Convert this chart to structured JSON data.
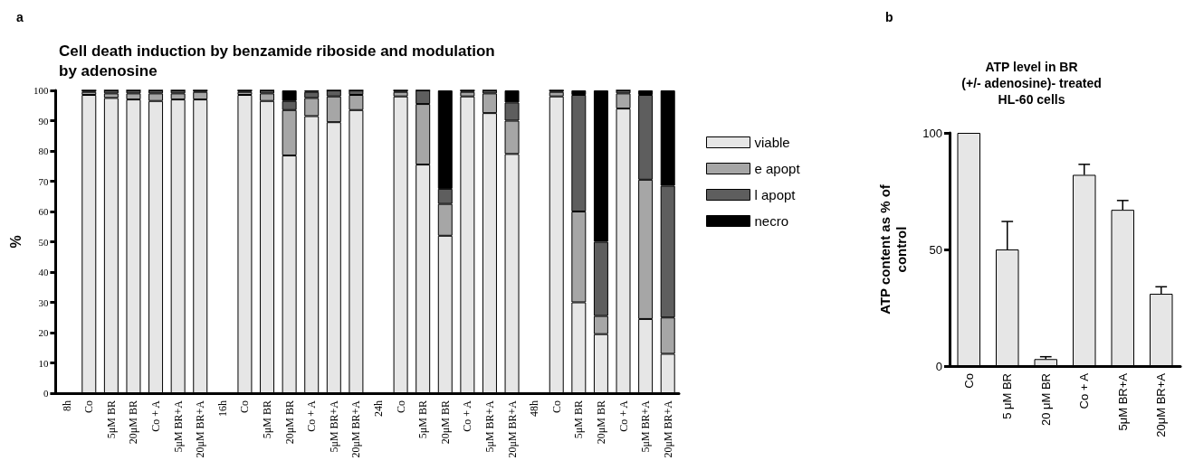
{
  "chart_data": [
    {
      "type": "bar",
      "stacked": true,
      "title": "Cell death induction by benzamide riboside and modulation\nby adenosine",
      "ylabel": "%",
      "annotations": [
        "a"
      ],
      "categories": [
        "8h",
        "Co",
        "5μM BR",
        "20μM BR",
        "Co + A",
        "5μM BR+A",
        "20μM BR+A",
        "16h",
        "Co",
        "5μM BR",
        "20μM BR",
        "Co + A",
        "5μM BR+A",
        "20μM BR+A",
        "24h",
        "Co",
        "5μM BR",
        "20μM BR",
        "Co + A",
        "5μM BR+A",
        "20μM BR+A",
        "48h",
        "Co",
        "5μM BR",
        "20μM BR",
        "Co + A",
        "5μM BR+A",
        "20μM BR+A"
      ],
      "series": [
        {
          "name": "viable",
          "color": "#e6e6e6",
          "values": [
            null,
            98.5,
            97.5,
            97,
            96.5,
            97,
            97,
            null,
            98.5,
            96.5,
            78.5,
            91.5,
            89.5,
            93.5,
            null,
            98,
            75.5,
            52,
            98,
            92.5,
            79,
            null,
            98,
            30,
            19.5,
            94,
            24.5,
            13
          ]
        },
        {
          "name": "e apopt",
          "color": "#a6a6a6",
          "values": [
            null,
            1,
            1.5,
            2,
            2.5,
            2,
            2.5,
            null,
            1,
            2.5,
            15,
            6,
            8.5,
            5,
            null,
            1.5,
            20,
            10.5,
            1.5,
            6.5,
            11,
            null,
            1.5,
            30,
            6,
            5,
            46,
            12
          ]
        },
        {
          "name": "l apopt",
          "color": "#5e5e5e",
          "values": [
            null,
            0.5,
            1,
            1,
            1,
            1,
            0.5,
            null,
            0.5,
            1,
            3,
            2,
            2,
            1.5,
            null,
            0.5,
            4.5,
            5,
            0.5,
            1,
            6,
            null,
            0.5,
            38.5,
            24.5,
            1,
            28,
            43.5
          ]
        },
        {
          "name": "necro",
          "color": "#000000",
          "values": [
            null,
            0,
            0,
            0,
            0,
            0,
            0,
            null,
            0,
            0,
            3.5,
            0.5,
            0,
            0,
            null,
            0,
            0,
            32.5,
            0,
            0,
            4,
            null,
            0,
            1.5,
            50,
            0,
            1.5,
            31.5
          ]
        }
      ],
      "ylim": [
        0,
        100
      ],
      "yticks": [
        0,
        10,
        20,
        30,
        40,
        50,
        60,
        70,
        80,
        90,
        100
      ],
      "legend": "right",
      "grid": false
    },
    {
      "type": "bar",
      "title": "ATP level in BR\n(+/- adenosine)- treated\nHL-60 cells",
      "ylabel": "ATP content as % of\ncontrol",
      "annotations": [
        "b"
      ],
      "categories": [
        "Co",
        "5 μM BR",
        "20 μM BR",
        "Co + A",
        "5μM BR+A",
        "20μM BR+A"
      ],
      "values": [
        100,
        50,
        3,
        82,
        67,
        31
      ],
      "color": "#e6e6e6",
      "errors": [
        null,
        [
          50,
          62
        ],
        [
          3,
          4
        ],
        [
          82,
          86.5
        ],
        [
          67,
          71
        ],
        [
          31,
          34
        ]
      ],
      "ylim": [
        0,
        100
      ],
      "yticks": [
        0,
        50,
        100
      ],
      "grid": false
    }
  ]
}
